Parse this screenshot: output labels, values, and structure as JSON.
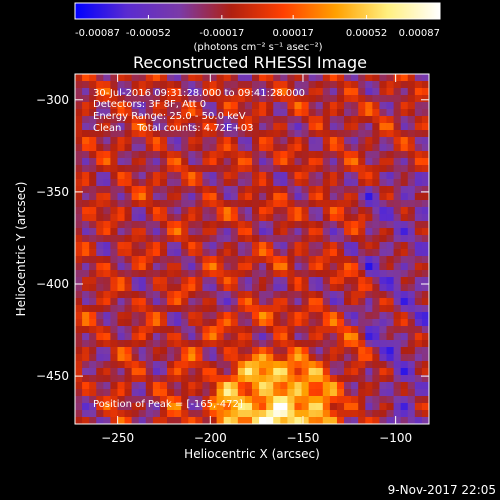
{
  "chart_data": {
    "type": "heatmap",
    "title": "Reconstructed RHESSI Image",
    "xlabel": "Heliocentric X (arcsec)",
    "ylabel": "Heliocentric Y (arcsec)",
    "xlim": [
      -273,
      -82
    ],
    "ylim": [
      -476,
      -286
    ],
    "x_ticks": [
      -250,
      -200,
      -150,
      -100
    ],
    "y_ticks": [
      -300,
      -350,
      -400,
      -450
    ],
    "colorbar": {
      "range": [
        -0.00087,
        0.00087
      ],
      "ticks": [
        -0.00087,
        -0.00052,
        -0.00017,
        0.00017,
        0.00052,
        0.00087
      ],
      "tick_labels": [
        "-0.00087",
        "-0.00052",
        "-0.00017",
        "0.00017",
        "0.00052",
        "0.00087"
      ],
      "unit_label": "(photons cm⁻² s⁻¹ asec⁻²)",
      "colormap": [
        "#0000ff",
        "#5a2bd0",
        "#7a3aa8",
        "#b02010",
        "#ff4000",
        "#ffa000",
        "#fff080",
        "#ffffff"
      ]
    },
    "annotations": [
      "30-Jul-2016 09:31:28.000 to 09:41:28.000",
      "Detectors: 3F 8F, Att 0",
      "Energy Range: 25.0 - 50.0 keV",
      "Clean     Total counts: 4.72E+03"
    ],
    "peak_label": "Position of Peak = [-165,-472]",
    "peak": [
      -165,
      -472
    ]
  },
  "footer": {
    "date": "9-Nov-2017 22:05"
  }
}
